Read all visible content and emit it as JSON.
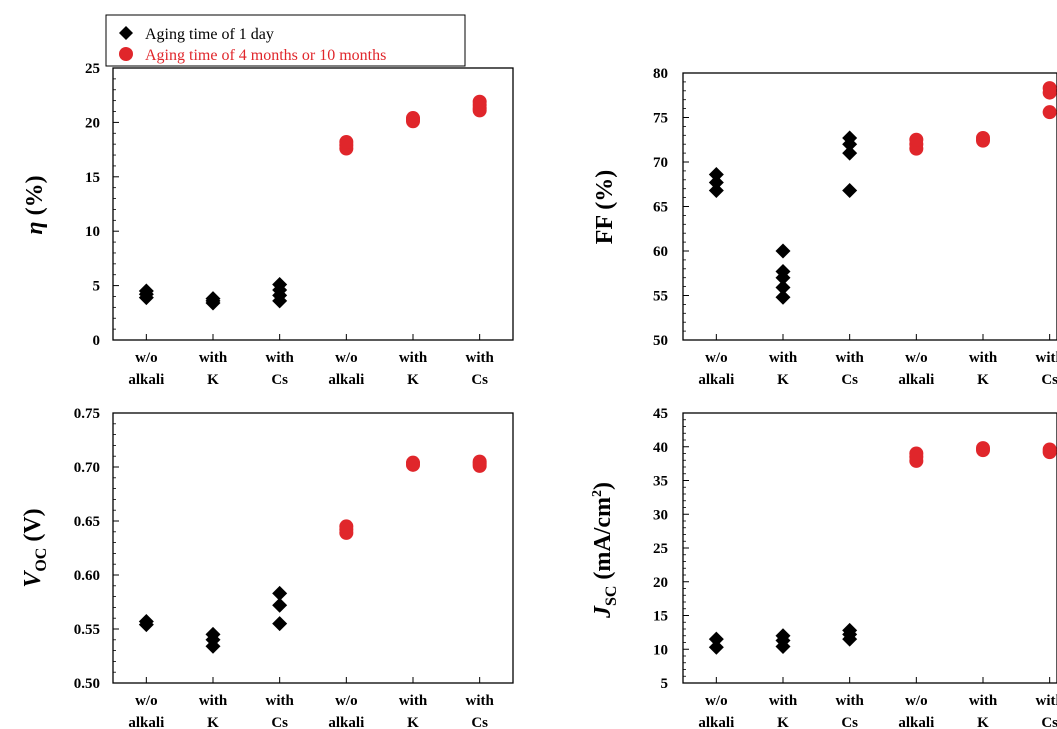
{
  "legend": {
    "entries": [
      {
        "label": "Aging time of 1 day",
        "color": "#000000",
        "marker": "diamond"
      },
      {
        "label": "Aging time of 4 months or 10 months",
        "color": "#e0262b",
        "marker": "circle"
      }
    ]
  },
  "categories": [
    "w/o alkali",
    "with K",
    "with Cs",
    "w/o alkali",
    "with K",
    "with Cs"
  ],
  "chart_data": [
    {
      "type": "scatter",
      "ylabel": "η (%)",
      "ylim": [
        0,
        25
      ],
      "yticks": [
        0,
        5,
        10,
        15,
        20,
        25
      ],
      "ytick_labels": [
        "0",
        "5",
        "10",
        "15",
        "20",
        "25"
      ],
      "categories": [
        "w/o alkali",
        "with K",
        "with Cs",
        "w/o alkali",
        "with K",
        "with Cs"
      ],
      "series": [
        {
          "name": "Aging time of 1 day",
          "color": "#000000",
          "marker": "diamond",
          "points": [
            [
              1,
              3.9
            ],
            [
              1,
              4.2
            ],
            [
              1,
              4.5
            ],
            [
              2,
              3.4
            ],
            [
              2,
              3.6
            ],
            [
              2,
              3.8
            ],
            [
              3,
              3.6
            ],
            [
              3,
              4.1
            ],
            [
              3,
              4.6
            ],
            [
              3,
              5.1
            ]
          ]
        },
        {
          "name": "Aging time of 4 months or 10 months",
          "color": "#e0262b",
          "marker": "circle",
          "points": [
            [
              4,
              17.6
            ],
            [
              4,
              17.9
            ],
            [
              4,
              18.2
            ],
            [
              5,
              20.1
            ],
            [
              5,
              20.3
            ],
            [
              5,
              20.4
            ],
            [
              6,
              21.1
            ],
            [
              6,
              21.3
            ],
            [
              6,
              21.6
            ],
            [
              6,
              21.9
            ]
          ]
        }
      ]
    },
    {
      "type": "scatter",
      "ylabel": "FF (%)",
      "ylim": [
        50,
        80
      ],
      "yticks": [
        50,
        55,
        60,
        65,
        70,
        75,
        80
      ],
      "ytick_labels": [
        "50",
        "55",
        "60",
        "65",
        "70",
        "75",
        "80"
      ],
      "categories": [
        "w/o alkali",
        "with K",
        "with Cs",
        "w/o alkali",
        "with K",
        "with Cs"
      ],
      "series": [
        {
          "name": "Aging time of 1 day",
          "color": "#000000",
          "marker": "diamond",
          "points": [
            [
              1,
              66.8
            ],
            [
              1,
              67.7
            ],
            [
              1,
              68.6
            ],
            [
              2,
              54.8
            ],
            [
              2,
              55.9
            ],
            [
              2,
              57.0
            ],
            [
              2,
              57.7
            ],
            [
              2,
              60.0
            ],
            [
              3,
              66.8
            ],
            [
              3,
              71.0
            ],
            [
              3,
              72.0
            ],
            [
              3,
              72.7
            ]
          ]
        },
        {
          "name": "Aging time of 4 months or 10 months",
          "color": "#e0262b",
          "marker": "circle",
          "points": [
            [
              4,
              71.5
            ],
            [
              4,
              72.0
            ],
            [
              4,
              72.5
            ],
            [
              5,
              72.4
            ],
            [
              5,
              72.7
            ],
            [
              6,
              75.6
            ],
            [
              6,
              77.8
            ],
            [
              6,
              78.3
            ]
          ]
        }
      ]
    },
    {
      "type": "scatter",
      "ylabel": "VOC (V)",
      "ylim": [
        0.5,
        0.75
      ],
      "yticks": [
        0.5,
        0.55,
        0.6,
        0.65,
        0.7,
        0.75
      ],
      "ytick_labels": [
        "0.50",
        "0.55",
        "0.60",
        "0.65",
        "0.70",
        "0.75"
      ],
      "categories": [
        "w/o alkali",
        "with K",
        "with Cs",
        "w/o alkali",
        "with K",
        "with Cs"
      ],
      "series": [
        {
          "name": "Aging time of 1 day",
          "color": "#000000",
          "marker": "diamond",
          "points": [
            [
              1,
              0.554
            ],
            [
              1,
              0.557
            ],
            [
              2,
              0.534
            ],
            [
              2,
              0.54
            ],
            [
              2,
              0.545
            ],
            [
              3,
              0.555
            ],
            [
              3,
              0.572
            ],
            [
              3,
              0.583
            ]
          ]
        },
        {
          "name": "Aging time of 4 months or 10 months",
          "color": "#e0262b",
          "marker": "circle",
          "points": [
            [
              4,
              0.639
            ],
            [
              4,
              0.642
            ],
            [
              4,
              0.645
            ],
            [
              5,
              0.702
            ],
            [
              5,
              0.704
            ],
            [
              6,
              0.701
            ],
            [
              6,
              0.703
            ],
            [
              6,
              0.705
            ]
          ]
        }
      ]
    },
    {
      "type": "scatter",
      "ylabel": "JSC (mA/cm2)",
      "ylim": [
        5,
        45
      ],
      "yticks": [
        5,
        10,
        15,
        20,
        25,
        30,
        35,
        40,
        45
      ],
      "ytick_labels": [
        "5",
        "10",
        "15",
        "20",
        "25",
        "30",
        "35",
        "40",
        "45"
      ],
      "categories": [
        "w/o alkali",
        "with K",
        "with Cs",
        "w/o alkali",
        "with K",
        "with Cs"
      ],
      "series": [
        {
          "name": "Aging time of 1 day",
          "color": "#000000",
          "marker": "diamond",
          "points": [
            [
              1,
              10.3
            ],
            [
              1,
              11.5
            ],
            [
              2,
              10.4
            ],
            [
              2,
              11.3
            ],
            [
              2,
              12.0
            ],
            [
              3,
              11.5
            ],
            [
              3,
              12.2
            ],
            [
              3,
              12.8
            ]
          ]
        },
        {
          "name": "Aging time of 4 months or 10 months",
          "color": "#e0262b",
          "marker": "circle",
          "points": [
            [
              4,
              37.9
            ],
            [
              4,
              38.5
            ],
            [
              4,
              39.0
            ],
            [
              5,
              39.5
            ],
            [
              5,
              39.8
            ],
            [
              6,
              39.2
            ],
            [
              6,
              39.6
            ]
          ]
        }
      ]
    }
  ]
}
